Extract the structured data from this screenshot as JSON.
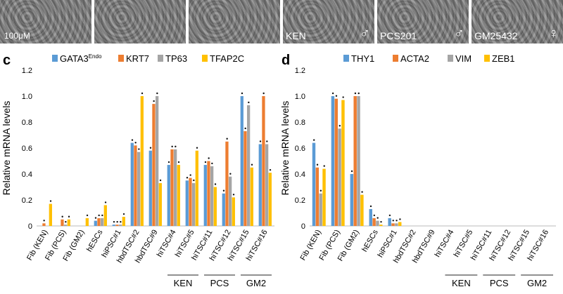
{
  "micrographs": {
    "scale_label": "100μM",
    "tiles": [
      {
        "label": "",
        "sex": ""
      },
      {
        "label": "",
        "sex": ""
      },
      {
        "label": "",
        "sex": ""
      },
      {
        "label": "KEN",
        "sex": "♂"
      },
      {
        "label": "PCS201",
        "sex": "♂"
      },
      {
        "label": "GM25432",
        "sex": "♀"
      }
    ]
  },
  "chart_data": [
    {
      "panel": "c",
      "type": "bar",
      "ylabel": "Relative mRNA levels",
      "ylim": [
        0,
        1.2
      ],
      "yticks": [
        "0",
        "0.2",
        "0.4",
        "0.6",
        "0.8",
        "1.0",
        "1.2"
      ],
      "categories": [
        "Fib (KEN)",
        "Fib (PCS)",
        "Fib (GM2)",
        "hESCs",
        "hiPSC#1",
        "hbdTSC#2",
        "hbdTSC#9",
        "hiTSC#4",
        "hiTSC#5",
        "hiTSC#11",
        "hiTSC#12",
        "hiTSC#15",
        "hiTSC#16"
      ],
      "series": [
        {
          "name": "GATA3",
          "name_sup": "Endo",
          "color": "#5b9bd5",
          "values": [
            0.0,
            0.0,
            0.0,
            0.04,
            0.01,
            0.64,
            0.58,
            0.47,
            0.35,
            0.47,
            0.25,
            1.0,
            0.63
          ]
        },
        {
          "name": "KRT7",
          "color": "#ed7d31",
          "values": [
            0.02,
            0.05,
            0.0,
            0.06,
            0.01,
            0.62,
            0.94,
            0.59,
            0.37,
            0.5,
            0.65,
            0.73,
            1.0
          ]
        },
        {
          "name": "TP63",
          "color": "#a5a5a5",
          "values": [
            0.0,
            0.01,
            0.0,
            0.06,
            0.01,
            0.57,
            1.0,
            0.59,
            0.33,
            0.46,
            0.38,
            0.93,
            0.63
          ]
        },
        {
          "name": "TFAP2C",
          "color": "#ffc000",
          "values": [
            0.17,
            0.05,
            0.06,
            0.16,
            0.07,
            1.0,
            0.33,
            0.47,
            0.58,
            0.3,
            0.22,
            0.45,
            0.41
          ]
        }
      ],
      "groups": [
        {
          "label": "KEN",
          "from": 7,
          "to": 8
        },
        {
          "label": "PCS",
          "from": 9,
          "to": 10
        },
        {
          "label": "GM2",
          "from": 11,
          "to": 12
        }
      ]
    },
    {
      "panel": "d",
      "type": "bar",
      "ylabel": "Relative mRNA levels",
      "ylim": [
        0,
        1.2
      ],
      "yticks": [
        "0",
        "0.2",
        "0.4",
        "0.6",
        "0.8",
        "1.0",
        "1.2"
      ],
      "categories": [
        "Fib (KEN)",
        "Fib (PCS)",
        "Fib (GM2)",
        "hESCs",
        "hiPSC#1",
        "hbdTSC#2",
        "hbdTSC#9",
        "hiTSC#4",
        "hiTSC#5",
        "hiTSC#11",
        "hiTSC#12",
        "hiTSC#15",
        "hiTSC#16"
      ],
      "series": [
        {
          "name": "THY1",
          "color": "#5b9bd5",
          "values": [
            0.64,
            1.0,
            0.4,
            0.13,
            0.06,
            0.0,
            0.0,
            0.0,
            0.0,
            0.0,
            0.0,
            0.0,
            0.0
          ]
        },
        {
          "name": "ACTA2",
          "color": "#ed7d31",
          "values": [
            0.45,
            0.98,
            1.0,
            0.06,
            0.02,
            0.0,
            0.0,
            0.0,
            0.0,
            0.0,
            0.0,
            0.0,
            0.0
          ]
        },
        {
          "name": "VIM",
          "color": "#a5a5a5",
          "values": [
            0.25,
            0.75,
            1.0,
            0.04,
            0.02,
            0.0,
            0.0,
            0.0,
            0.0,
            0.0,
            0.0,
            0.0,
            0.0
          ]
        },
        {
          "name": "ZEB1",
          "color": "#ffc000",
          "values": [
            0.44,
            0.97,
            0.24,
            0.01,
            0.03,
            0.0,
            0.0,
            0.0,
            0.0,
            0.0,
            0.0,
            0.0,
            0.0
          ]
        }
      ],
      "groups": [
        {
          "label": "KEN",
          "from": 7,
          "to": 8
        },
        {
          "label": "PCS",
          "from": 9,
          "to": 10
        },
        {
          "label": "GM2",
          "from": 11,
          "to": 12
        }
      ]
    }
  ]
}
